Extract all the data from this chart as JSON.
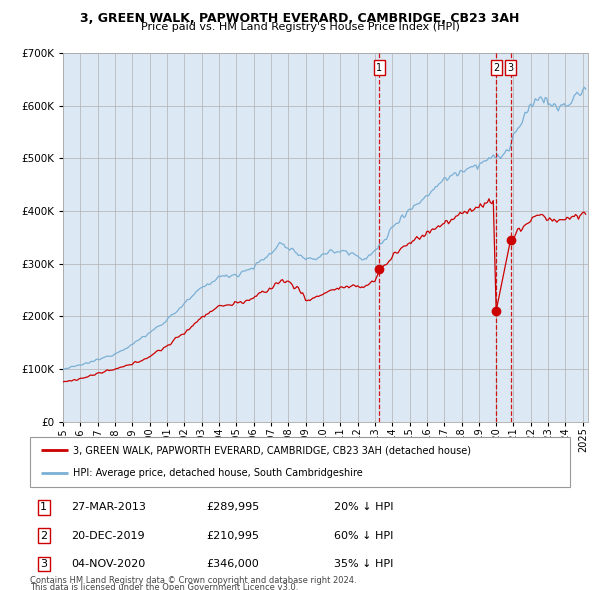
{
  "title_line1": "3, GREEN WALK, PAPWORTH EVERARD, CAMBRIDGE, CB23 3AH",
  "title_line2": "Price paid vs. HM Land Registry's House Price Index (HPI)",
  "legend_line1": "3, GREEN WALK, PAPWORTH EVERARD, CAMBRIDGE, CB23 3AH (detached house)",
  "legend_line2": "HPI: Average price, detached house, South Cambridgeshire",
  "footnote1": "Contains HM Land Registry data © Crown copyright and database right 2024.",
  "footnote2": "This data is licensed under the Open Government Licence v3.0.",
  "sale1_date": "27-MAR-2013",
  "sale1_price": 289995,
  "sale1_label": "20% ↓ HPI",
  "sale2_date": "20-DEC-2019",
  "sale2_price": 210995,
  "sale2_label": "60% ↓ HPI",
  "sale3_date": "04-NOV-2020",
  "sale3_price": 346000,
  "sale3_label": "35% ↓ HPI",
  "hpi_color": "#7bafd4",
  "price_color": "#cc0000",
  "dot_color": "#cc0000",
  "bg_color": "#dce9f5",
  "vline_color": "#cc0000",
  "grid_color": "#b0b0b0",
  "ylim_max": 700000,
  "ylim_min": 0,
  "start_year": 1995,
  "end_year": 2025
}
